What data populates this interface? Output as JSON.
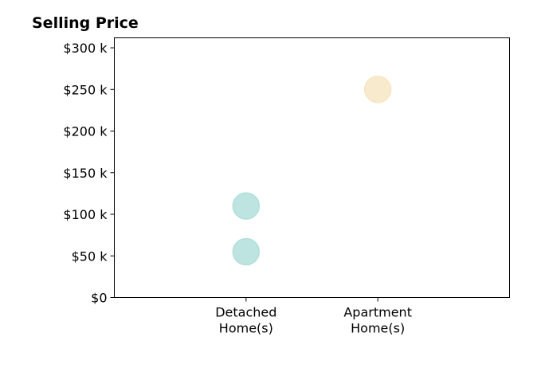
{
  "chart_data": {
    "type": "scatter",
    "title": "Selling Price",
    "xlabel": "",
    "ylabel": "",
    "categories": [
      [
        "Detached",
        "Home(s)"
      ],
      [
        "Apartment",
        "Home(s)"
      ]
    ],
    "y_ticks": [
      {
        "value": 0,
        "label": "$0"
      },
      {
        "value": 50000,
        "label": "$50 k"
      },
      {
        "value": 100000,
        "label": "$100 k"
      },
      {
        "value": 150000,
        "label": "$150 k"
      },
      {
        "value": 200000,
        "label": "$200 k"
      },
      {
        "value": 250000,
        "label": "$250 k"
      },
      {
        "value": 300000,
        "label": "$300 k"
      }
    ],
    "ylim": [
      0,
      312000
    ],
    "xlim": [
      -1,
      2
    ],
    "grid": false,
    "points": [
      {
        "category": 0,
        "y": 55000,
        "color": "#b2dfdb"
      },
      {
        "category": 0,
        "y": 110000,
        "color": "#b2dfdb"
      },
      {
        "category": 1,
        "y": 250000,
        "color": "#f7e6c4"
      }
    ],
    "colors": {
      "detached": "#b2dfdb",
      "apartment": "#f7e6c4"
    }
  }
}
